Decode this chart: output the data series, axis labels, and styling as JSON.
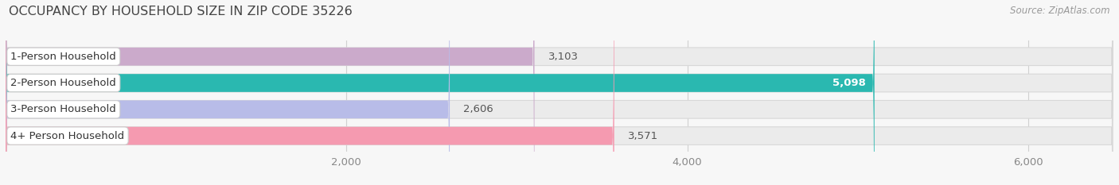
{
  "title": "OCCUPANCY BY HOUSEHOLD SIZE IN ZIP CODE 35226",
  "source": "Source: ZipAtlas.com",
  "categories": [
    "1-Person Household",
    "2-Person Household",
    "3-Person Household",
    "4+ Person Household"
  ],
  "values": [
    3103,
    5098,
    2606,
    3571
  ],
  "bar_colors": [
    "#cbaacb",
    "#2ab8b0",
    "#b8bce8",
    "#f59ab0"
  ],
  "value_labels": [
    "3,103",
    "5,098",
    "2,606",
    "3,571"
  ],
  "value_inside": [
    false,
    true,
    false,
    false
  ],
  "xlim_min": 0,
  "xlim_max": 6500,
  "xticks": [
    2000,
    4000,
    6000
  ],
  "xtick_labels": [
    "2,000",
    "4,000",
    "6,000"
  ],
  "background_color": "#f7f7f7",
  "bar_background_color": "#ebebeb",
  "bar_background_edge": "#d8d8d8",
  "grid_color": "#d0d0d0",
  "title_fontsize": 11.5,
  "source_fontsize": 8.5,
  "label_fontsize": 9.5,
  "value_fontsize": 9.5,
  "tick_fontsize": 9.5,
  "bar_height": 0.68,
  "rounding_size": 12
}
